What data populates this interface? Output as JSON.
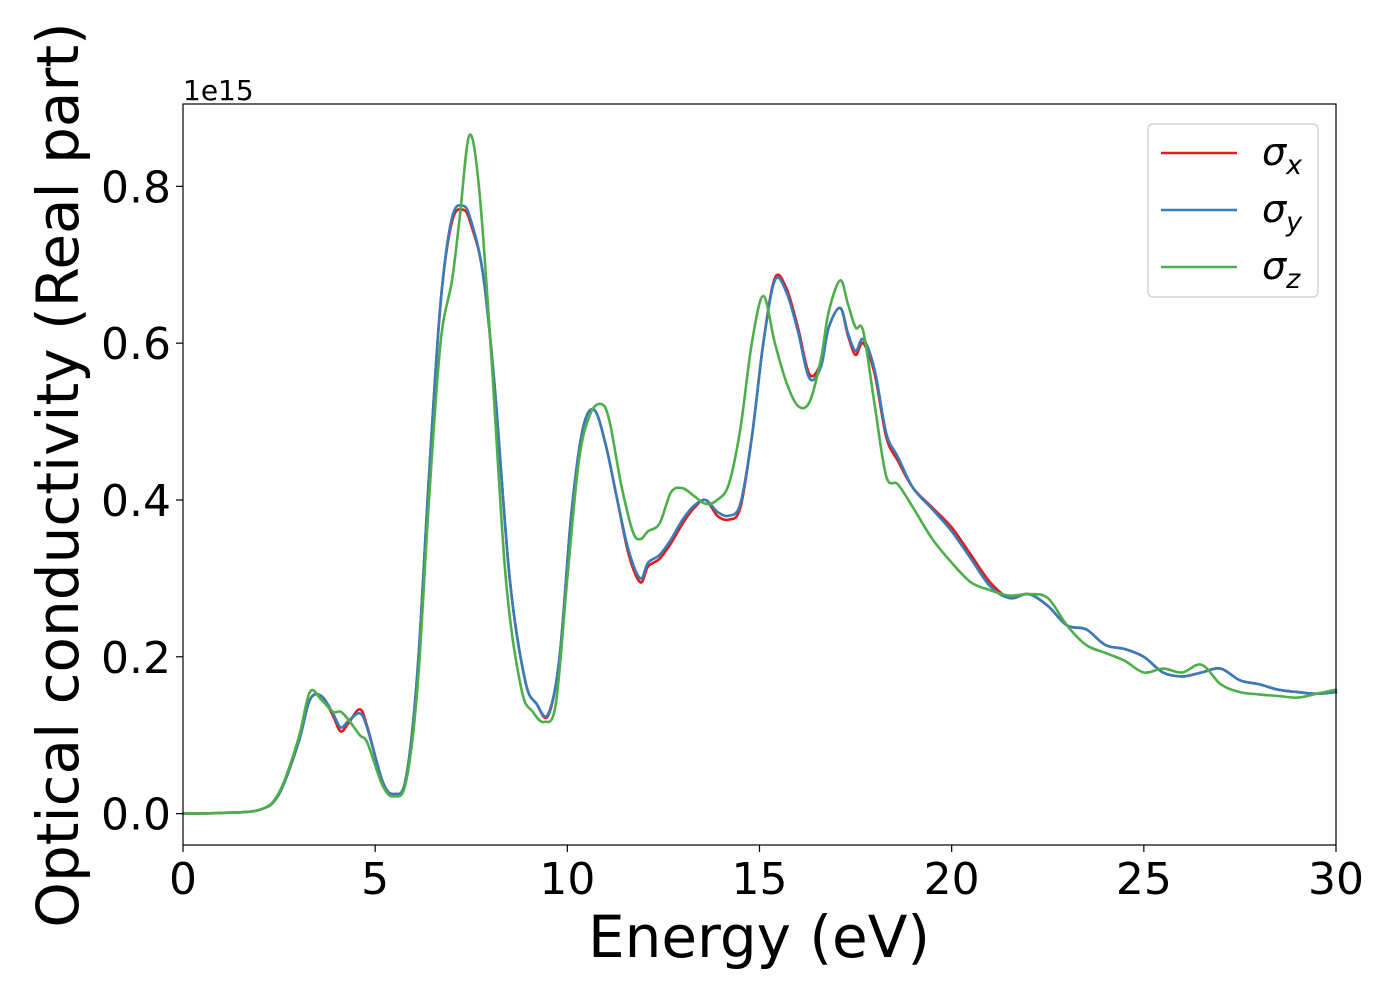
{
  "chart_data": {
    "type": "line",
    "xlabel": "Energy (eV)",
    "ylabel": "Optical conductivity (Real part)",
    "offset_text": "1e15",
    "xlim": [
      0,
      30
    ],
    "ylim": [
      -0.04,
      0.905
    ],
    "xticks": [
      0,
      5,
      10,
      15,
      20,
      25,
      30
    ],
    "xtick_labels": [
      "0",
      "5",
      "10",
      "15",
      "20",
      "25",
      "30"
    ],
    "yticks": [
      0.0,
      0.2,
      0.4,
      0.6,
      0.8
    ],
    "ytick_labels": [
      "0.0",
      "0.2",
      "0.4",
      "0.6",
      "0.8"
    ],
    "grid": false,
    "legend_position": "top-right",
    "series": [
      {
        "name": "σx",
        "base": "σ",
        "sub": "x",
        "color": "#e41a1c",
        "x": [
          0,
          1,
          2,
          2.5,
          3,
          3.3,
          3.6,
          3.9,
          4.1,
          4.3,
          4.6,
          4.8,
          5.2,
          5.5,
          5.8,
          6.1,
          6.4,
          6.7,
          7.0,
          7.3,
          7.5,
          7.8,
          8.1,
          8.5,
          8.9,
          9.2,
          9.5,
          9.8,
          10.1,
          10.4,
          10.7,
          11.0,
          11.3,
          11.6,
          11.9,
          12.1,
          12.4,
          12.7,
          13.0,
          13.3,
          13.6,
          13.9,
          14.2,
          14.5,
          14.8,
          15.1,
          15.4,
          15.7,
          16.0,
          16.3,
          16.6,
          16.8,
          17.1,
          17.3,
          17.5,
          17.7,
          18.0,
          18.3,
          18.6,
          19.0,
          19.5,
          20.0,
          20.5,
          21.0,
          21.5,
          22.0,
          22.5,
          23.0,
          23.5,
          24.0,
          24.5,
          25.0,
          25.5,
          26.0,
          26.5,
          27.0,
          27.5,
          28.0,
          28.5,
          29.0,
          29.5,
          30.0
        ],
        "y": [
          0,
          0.001,
          0.005,
          0.025,
          0.09,
          0.145,
          0.15,
          0.125,
          0.105,
          0.115,
          0.133,
          0.11,
          0.04,
          0.025,
          0.045,
          0.18,
          0.43,
          0.65,
          0.755,
          0.77,
          0.75,
          0.69,
          0.55,
          0.3,
          0.17,
          0.14,
          0.125,
          0.2,
          0.38,
          0.49,
          0.515,
          0.47,
          0.4,
          0.33,
          0.295,
          0.315,
          0.325,
          0.345,
          0.37,
          0.39,
          0.4,
          0.38,
          0.375,
          0.39,
          0.48,
          0.6,
          0.683,
          0.67,
          0.62,
          0.56,
          0.575,
          0.62,
          0.645,
          0.61,
          0.585,
          0.6,
          0.56,
          0.48,
          0.45,
          0.415,
          0.39,
          0.365,
          0.33,
          0.295,
          0.275,
          0.28,
          0.265,
          0.24,
          0.235,
          0.215,
          0.21,
          0.2,
          0.18,
          0.175,
          0.18,
          0.185,
          0.17,
          0.165,
          0.158,
          0.155,
          0.153,
          0.155
        ]
      },
      {
        "name": "σy",
        "base": "σ",
        "sub": "y",
        "color": "#377eb8",
        "x": [
          0,
          1,
          2,
          2.5,
          3,
          3.3,
          3.6,
          3.9,
          4.1,
          4.3,
          4.6,
          4.8,
          5.2,
          5.5,
          5.8,
          6.1,
          6.4,
          6.7,
          7.0,
          7.3,
          7.5,
          7.8,
          8.1,
          8.5,
          8.9,
          9.2,
          9.5,
          9.8,
          10.1,
          10.4,
          10.7,
          11.0,
          11.3,
          11.6,
          11.9,
          12.1,
          12.4,
          12.7,
          13.0,
          13.3,
          13.6,
          13.9,
          14.2,
          14.5,
          14.8,
          15.1,
          15.4,
          15.7,
          16.0,
          16.3,
          16.6,
          16.8,
          17.1,
          17.3,
          17.5,
          17.7,
          18.0,
          18.3,
          18.6,
          19.0,
          19.5,
          20.0,
          20.5,
          21.0,
          21.5,
          22.0,
          22.5,
          23.0,
          23.5,
          24.0,
          24.5,
          25.0,
          25.5,
          26.0,
          26.5,
          27.0,
          27.5,
          28.0,
          28.5,
          29.0,
          29.5,
          30.0
        ],
        "y": [
          0,
          0.001,
          0.005,
          0.025,
          0.09,
          0.145,
          0.15,
          0.128,
          0.11,
          0.118,
          0.128,
          0.108,
          0.04,
          0.025,
          0.045,
          0.18,
          0.43,
          0.65,
          0.76,
          0.775,
          0.755,
          0.69,
          0.55,
          0.3,
          0.17,
          0.14,
          0.127,
          0.2,
          0.38,
          0.49,
          0.515,
          0.47,
          0.4,
          0.335,
          0.3,
          0.32,
          0.33,
          0.35,
          0.375,
          0.393,
          0.4,
          0.385,
          0.38,
          0.395,
          0.48,
          0.6,
          0.68,
          0.665,
          0.615,
          0.555,
          0.57,
          0.62,
          0.645,
          0.613,
          0.59,
          0.605,
          0.565,
          0.485,
          0.455,
          0.415,
          0.388,
          0.36,
          0.325,
          0.29,
          0.275,
          0.28,
          0.265,
          0.24,
          0.235,
          0.215,
          0.21,
          0.2,
          0.18,
          0.175,
          0.18,
          0.185,
          0.17,
          0.165,
          0.158,
          0.155,
          0.153,
          0.155
        ]
      },
      {
        "name": "σz",
        "base": "σ",
        "sub": "z",
        "color": "#4daf4a",
        "x": [
          0,
          1,
          2,
          2.5,
          3,
          3.3,
          3.6,
          3.9,
          4.1,
          4.3,
          4.6,
          4.8,
          5.2,
          5.5,
          5.8,
          6.1,
          6.4,
          6.7,
          7.0,
          7.2,
          7.45,
          7.7,
          8.0,
          8.4,
          8.8,
          9.1,
          9.4,
          9.7,
          10.0,
          10.3,
          10.6,
          10.9,
          11.1,
          11.4,
          11.7,
          11.9,
          12.1,
          12.4,
          12.7,
          13.0,
          13.3,
          13.6,
          13.9,
          14.2,
          14.5,
          14.8,
          15.1,
          15.4,
          15.7,
          16.0,
          16.3,
          16.6,
          16.8,
          17.1,
          17.3,
          17.5,
          17.7,
          18.0,
          18.3,
          18.6,
          19.0,
          19.5,
          20.0,
          20.5,
          21.0,
          21.5,
          22.0,
          22.5,
          23.0,
          23.5,
          24.0,
          24.5,
          25.0,
          25.5,
          26.0,
          26.5,
          27.0,
          27.5,
          28.0,
          28.5,
          29.0,
          29.5,
          30.0
        ],
        "y": [
          0,
          0.001,
          0.005,
          0.027,
          0.095,
          0.155,
          0.145,
          0.13,
          0.13,
          0.12,
          0.1,
          0.09,
          0.035,
          0.022,
          0.04,
          0.16,
          0.4,
          0.6,
          0.68,
          0.76,
          0.865,
          0.8,
          0.6,
          0.3,
          0.16,
          0.13,
          0.117,
          0.14,
          0.3,
          0.45,
          0.51,
          0.522,
          0.5,
          0.42,
          0.36,
          0.35,
          0.36,
          0.37,
          0.41,
          0.415,
          0.405,
          0.395,
          0.4,
          0.42,
          0.49,
          0.6,
          0.66,
          0.6,
          0.55,
          0.52,
          0.525,
          0.58,
          0.64,
          0.68,
          0.65,
          0.62,
          0.615,
          0.52,
          0.43,
          0.42,
          0.39,
          0.35,
          0.32,
          0.295,
          0.285,
          0.278,
          0.28,
          0.275,
          0.24,
          0.215,
          0.205,
          0.195,
          0.18,
          0.185,
          0.18,
          0.19,
          0.165,
          0.155,
          0.152,
          0.15,
          0.148,
          0.153,
          0.158
        ]
      }
    ]
  }
}
